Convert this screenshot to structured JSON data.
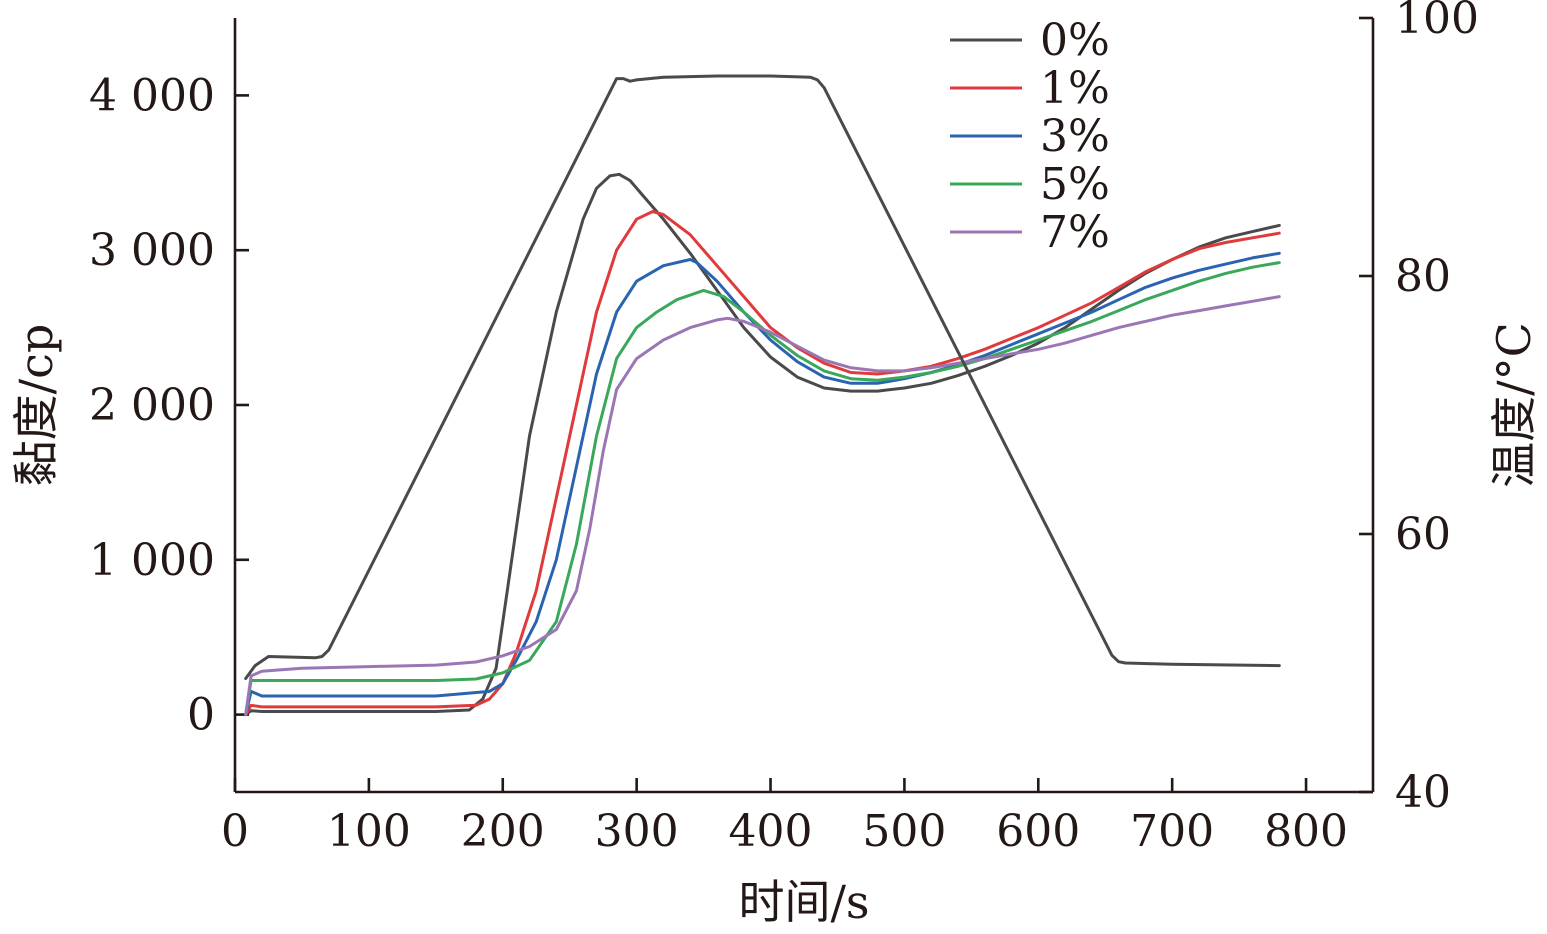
{
  "chart_data": {
    "type": "line",
    "xlabel": "时间/s",
    "ylabel": "黏度/cp",
    "y2label": "温度/°C",
    "xlim": [
      0,
      850
    ],
    "ylim": [
      -500,
      4500
    ],
    "y2lim": [
      40,
      100
    ],
    "x_ticks": [
      0,
      100,
      200,
      300,
      400,
      500,
      600,
      700,
      800
    ],
    "x_tick_labels": [
      "0",
      "100",
      "200",
      "300",
      "400",
      "500",
      "600",
      "700",
      "800"
    ],
    "y_ticks": [
      0,
      1000,
      2000,
      3000,
      4000
    ],
    "y_tick_labels": [
      "0",
      "1 000",
      "2 000",
      "3 000",
      "4 000"
    ],
    "y2_ticks": [
      40,
      60,
      80,
      100
    ],
    "y2_tick_labels": [
      "40",
      "60",
      "80",
      "100"
    ],
    "grid": false,
    "legend_position": "top-right",
    "series": [
      {
        "name": "0%",
        "color": "#4a4a4a",
        "axis": "left",
        "x": [
          8,
          12,
          20,
          50,
          100,
          150,
          175,
          185,
          195,
          205,
          220,
          240,
          260,
          270,
          280,
          287,
          295,
          305,
          320,
          340,
          360,
          380,
          400,
          420,
          440,
          460,
          480,
          500,
          520,
          540,
          560,
          580,
          600,
          620,
          640,
          660,
          680,
          700,
          720,
          740,
          760,
          780
        ],
        "y": [
          0,
          25,
          20,
          20,
          20,
          20,
          30,
          100,
          300,
          900,
          1800,
          2600,
          3200,
          3400,
          3480,
          3490,
          3450,
          3350,
          3200,
          2980,
          2740,
          2500,
          2310,
          2180,
          2110,
          2090,
          2090,
          2110,
          2140,
          2190,
          2250,
          2320,
          2400,
          2500,
          2620,
          2740,
          2850,
          2940,
          3020,
          3080,
          3120,
          3160
        ]
      },
      {
        "name": "1%",
        "color": "#e03a3c",
        "axis": "left",
        "x": [
          8,
          12,
          20,
          50,
          100,
          150,
          180,
          190,
          200,
          210,
          225,
          240,
          255,
          270,
          285,
          300,
          312,
          320,
          340,
          360,
          380,
          400,
          420,
          440,
          460,
          480,
          500,
          520,
          540,
          560,
          580,
          600,
          620,
          640,
          660,
          680,
          700,
          720,
          740,
          760,
          780
        ],
        "y": [
          0,
          60,
          50,
          50,
          50,
          50,
          60,
          100,
          200,
          400,
          800,
          1400,
          2000,
          2600,
          3000,
          3200,
          3250,
          3230,
          3100,
          2900,
          2700,
          2500,
          2370,
          2270,
          2210,
          2200,
          2220,
          2250,
          2300,
          2360,
          2430,
          2500,
          2580,
          2660,
          2760,
          2860,
          2940,
          3010,
          3050,
          3080,
          3110
        ]
      },
      {
        "name": "3%",
        "color": "#2a64b0",
        "axis": "left",
        "x": [
          8,
          12,
          20,
          50,
          100,
          150,
          190,
          200,
          210,
          225,
          240,
          255,
          270,
          285,
          300,
          320,
          340,
          345,
          360,
          380,
          400,
          420,
          440,
          460,
          480,
          500,
          520,
          540,
          560,
          580,
          600,
          620,
          640,
          660,
          680,
          700,
          720,
          740,
          760,
          780
        ],
        "y": [
          0,
          150,
          120,
          120,
          120,
          120,
          150,
          200,
          350,
          600,
          1000,
          1600,
          2200,
          2600,
          2800,
          2900,
          2940,
          2920,
          2800,
          2600,
          2420,
          2280,
          2180,
          2140,
          2140,
          2170,
          2210,
          2260,
          2320,
          2390,
          2460,
          2530,
          2600,
          2680,
          2760,
          2820,
          2870,
          2910,
          2950,
          2980
        ]
      },
      {
        "name": "5%",
        "color": "#3aa85a",
        "axis": "left",
        "x": [
          8,
          12,
          20,
          50,
          100,
          150,
          180,
          200,
          220,
          240,
          255,
          270,
          285,
          300,
          315,
          330,
          350,
          365,
          380,
          400,
          420,
          440,
          460,
          480,
          500,
          520,
          540,
          560,
          580,
          600,
          620,
          640,
          660,
          680,
          700,
          720,
          740,
          760,
          780
        ],
        "y": [
          0,
          220,
          220,
          220,
          220,
          220,
          230,
          270,
          350,
          600,
          1100,
          1800,
          2300,
          2500,
          2600,
          2680,
          2740,
          2700,
          2600,
          2450,
          2320,
          2220,
          2170,
          2160,
          2180,
          2210,
          2250,
          2300,
          2360,
          2420,
          2480,
          2540,
          2610,
          2680,
          2740,
          2800,
          2850,
          2890,
          2920
        ]
      },
      {
        "name": "7%",
        "color": "#9b76b5",
        "axis": "left",
        "x": [
          8,
          12,
          20,
          50,
          100,
          150,
          180,
          200,
          220,
          240,
          255,
          265,
          275,
          285,
          300,
          320,
          340,
          360,
          368,
          380,
          400,
          420,
          440,
          460,
          480,
          500,
          520,
          540,
          560,
          580,
          600,
          620,
          640,
          660,
          680,
          700,
          720,
          740,
          760,
          780
        ],
        "y": [
          0,
          250,
          280,
          300,
          310,
          320,
          340,
          380,
          440,
          550,
          800,
          1200,
          1700,
          2100,
          2300,
          2420,
          2500,
          2550,
          2560,
          2540,
          2470,
          2380,
          2290,
          2240,
          2220,
          2220,
          2240,
          2270,
          2300,
          2330,
          2360,
          2400,
          2450,
          2500,
          2540,
          2580,
          2610,
          2640,
          2670,
          2700
        ]
      },
      {
        "name": "",
        "color": "#4a4a4a",
        "axis": "right",
        "x": [
          8,
          15,
          25,
          60,
          65,
          70,
          285,
          290,
          295,
          300,
          320,
          360,
          400,
          430,
          435,
          440,
          655,
          660,
          665,
          700,
          780
        ],
        "y": [
          48.8,
          49.8,
          50.5,
          50.4,
          50.5,
          51.0,
          95.3,
          95.3,
          95.1,
          95.2,
          95.4,
          95.5,
          95.5,
          95.4,
          95.2,
          94.6,
          50.6,
          50.1,
          50.0,
          49.9,
          49.8
        ]
      }
    ]
  }
}
